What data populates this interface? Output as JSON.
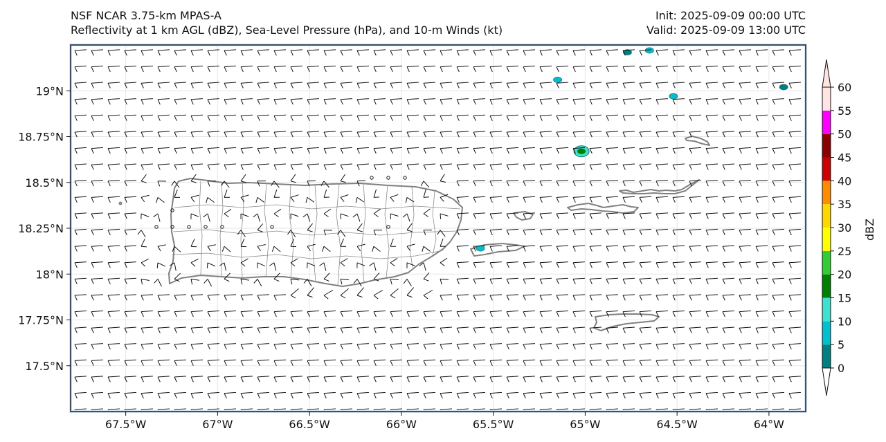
{
  "title": {
    "left_line1": "NSF NCAR 3.75-km MPAS-A",
    "left_line2": "Reflectivity at 1 km AGL (dBZ), Sea-Level Pressure (hPa), and 10-m Winds (kt)",
    "right_line1": "Init: 2025-09-09 00:00 UTC",
    "right_line2": "Valid: 2025-09-09 13:00 UTC"
  },
  "map": {
    "lon_range": [
      -67.8,
      -63.8
    ],
    "lat_range": [
      17.25,
      19.25
    ],
    "lon_ticks": [
      {
        "value": -67.5,
        "label": "67.5°W"
      },
      {
        "value": -67.0,
        "label": "67°W"
      },
      {
        "value": -66.5,
        "label": "66.5°W"
      },
      {
        "value": -66.0,
        "label": "66°W"
      },
      {
        "value": -65.5,
        "label": "65.5°W"
      },
      {
        "value": -65.0,
        "label": "65°W"
      },
      {
        "value": -64.5,
        "label": "64.5°W"
      },
      {
        "value": -64.0,
        "label": "64°W"
      }
    ],
    "lat_ticks": [
      {
        "value": 19.0,
        "label": "19°N"
      },
      {
        "value": 18.75,
        "label": "18.75°N"
      },
      {
        "value": 18.5,
        "label": "18.5°N"
      },
      {
        "value": 18.25,
        "label": "18.25°N"
      },
      {
        "value": 18.0,
        "label": "18°N"
      },
      {
        "value": 17.75,
        "label": "17.75°N"
      },
      {
        "value": 17.5,
        "label": "17.5°N"
      }
    ],
    "colors": {
      "coast": "#808080",
      "frame": "#1a2a44",
      "grid": "#e6e6e6",
      "sea_edge": "#d8e4f0"
    }
  },
  "colorbar": {
    "label": "dBZ",
    "levels": [
      0,
      5,
      10,
      15,
      20,
      25,
      30,
      35,
      40,
      45,
      50,
      55,
      60
    ],
    "tick_labels": [
      "0",
      "5",
      "10",
      "15",
      "20",
      "25",
      "30",
      "35",
      "40",
      "45",
      "50",
      "55",
      "60"
    ],
    "colors": [
      "#008080",
      "#00c0d0",
      "#40e0d0",
      "#008000",
      "#32cd32",
      "#ffff00",
      "#ffd700",
      "#ff8c00",
      "#cc0000",
      "#8b0000",
      "#ff00ff",
      "#ffe4e1"
    ]
  },
  "echoes": [
    {
      "lon": -65.02,
      "lat": 18.67,
      "color": "#40e0d0"
    },
    {
      "lon": -65.15,
      "lat": 19.06,
      "color": "#00c0d0"
    },
    {
      "lon": -64.52,
      "lat": 18.97,
      "color": "#00c0d0"
    },
    {
      "lon": -65.57,
      "lat": 18.14,
      "color": "#00c0d0"
    },
    {
      "lon": -64.77,
      "lat": 19.21,
      "color": "#008080"
    },
    {
      "lon": -64.65,
      "lat": 19.22,
      "color": "#00c0d0"
    },
    {
      "lon": -63.92,
      "lat": 19.02,
      "color": "#008080"
    }
  ]
}
